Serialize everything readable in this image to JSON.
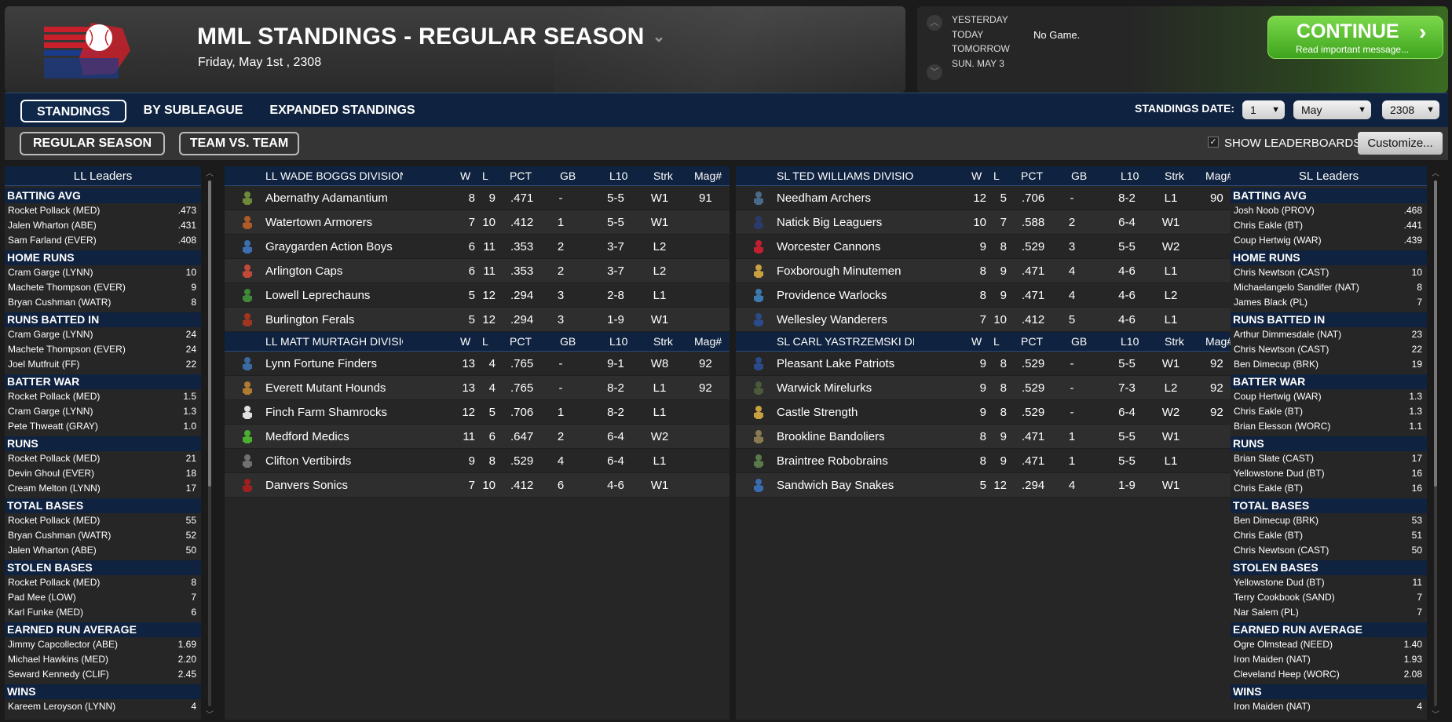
{
  "header": {
    "title": "MML STANDINGS - REGULAR SEASON",
    "date": "Friday, May 1st , 2308"
  },
  "games": {
    "days": [
      "YESTERDAY",
      "TODAY",
      "TOMORROW",
      "SUN. MAY 3"
    ],
    "today_status": "No Game."
  },
  "continue": {
    "label": "CONTINUE",
    "sub": "Read important message..."
  },
  "tabs": [
    "STANDINGS",
    "BY SUBLEAGUE",
    "EXPANDED STANDINGS"
  ],
  "standings_date": {
    "label": "STANDINGS DATE:",
    "day": "1",
    "month": "May",
    "year": "2308"
  },
  "subtabs": [
    "REGULAR SEASON",
    "TEAM VS. TEAM"
  ],
  "show_leaderboards": "SHOW LEADERBOARDS",
  "customize": "Customize...",
  "columns": [
    "W",
    "L",
    "PCT",
    "GB",
    "L10",
    "Strk",
    "Mag#"
  ],
  "divisions": [
    {
      "name": "LL WADE BOGGS DIVISION",
      "teams": [
        {
          "n": "Abernathy Adamantium",
          "w": "8",
          "l": "9",
          "pct": ".471",
          "gb": "-",
          "l10": "5-5",
          "strk": "W1",
          "mag": "91",
          "ic": "#6d8a3a"
        },
        {
          "n": "Watertown Armorers",
          "w": "7",
          "l": "10",
          "pct": ".412",
          "gb": "1",
          "l10": "5-5",
          "strk": "W1",
          "mag": "",
          "ic": "#b05a2a"
        },
        {
          "n": "Graygarden Action Boys",
          "w": "6",
          "l": "11",
          "pct": ".353",
          "gb": "2",
          "l10": "3-7",
          "strk": "L2",
          "mag": "",
          "ic": "#3b6fb0"
        },
        {
          "n": "Arlington Caps",
          "w": "6",
          "l": "11",
          "pct": ".353",
          "gb": "2",
          "l10": "3-7",
          "strk": "L2",
          "mag": "",
          "ic": "#c04a3a"
        },
        {
          "n": "Lowell Leprechauns",
          "w": "5",
          "l": "12",
          "pct": ".294",
          "gb": "3",
          "l10": "2-8",
          "strk": "L1",
          "mag": "",
          "ic": "#3e8a3a"
        },
        {
          "n": "Burlington Ferals",
          "w": "5",
          "l": "12",
          "pct": ".294",
          "gb": "3",
          "l10": "1-9",
          "strk": "W1",
          "mag": "",
          "ic": "#a03520"
        }
      ]
    },
    {
      "name": "SL TED WILLIAMS DIVISION",
      "teams": [
        {
          "n": "Needham Archers",
          "w": "12",
          "l": "5",
          "pct": ".706",
          "gb": "-",
          "l10": "8-2",
          "strk": "L1",
          "mag": "90",
          "ic": "#4a6a8a"
        },
        {
          "n": "Natick Big Leaguers",
          "w": "10",
          "l": "7",
          "pct": ".588",
          "gb": "2",
          "l10": "6-4",
          "strk": "W1",
          "mag": "",
          "ic": "#2a3a6a"
        },
        {
          "n": "Worcester Cannons",
          "w": "9",
          "l": "8",
          "pct": ".529",
          "gb": "3",
          "l10": "5-5",
          "strk": "W2",
          "mag": "",
          "ic": "#c02030"
        },
        {
          "n": "Foxborough Minutemen",
          "w": "8",
          "l": "9",
          "pct": ".471",
          "gb": "4",
          "l10": "4-6",
          "strk": "L1",
          "mag": "",
          "ic": "#c8a040"
        },
        {
          "n": "Providence Warlocks",
          "w": "8",
          "l": "9",
          "pct": ".471",
          "gb": "4",
          "l10": "4-6",
          "strk": "L2",
          "mag": "",
          "ic": "#3a7ab0"
        },
        {
          "n": "Wellesley Wanderers",
          "w": "7",
          "l": "10",
          "pct": ".412",
          "gb": "5",
          "l10": "4-6",
          "strk": "L1",
          "mag": "",
          "ic": "#2a4a8a"
        }
      ]
    },
    {
      "name": "LL MATT MURTAGH DIVISION",
      "teams": [
        {
          "n": "Lynn Fortune Finders",
          "w": "13",
          "l": "4",
          "pct": ".765",
          "gb": "-",
          "l10": "9-1",
          "strk": "W8",
          "mag": "92",
          "ic": "#3a6aa0"
        },
        {
          "n": "Everett Mutant Hounds",
          "w": "13",
          "l": "4",
          "pct": ".765",
          "gb": "-",
          "l10": "8-2",
          "strk": "L1",
          "mag": "92",
          "ic": "#b07a30"
        },
        {
          "n": "Finch Farm Shamrocks",
          "w": "12",
          "l": "5",
          "pct": ".706",
          "gb": "1",
          "l10": "8-2",
          "strk": "L1",
          "mag": "",
          "ic": "#e0e0e0"
        },
        {
          "n": "Medford Medics",
          "w": "11",
          "l": "6",
          "pct": ".647",
          "gb": "2",
          "l10": "6-4",
          "strk": "W2",
          "mag": "",
          "ic": "#4ab030"
        },
        {
          "n": "Clifton Vertibirds",
          "w": "9",
          "l": "8",
          "pct": ".529",
          "gb": "4",
          "l10": "6-4",
          "strk": "L1",
          "mag": "",
          "ic": "#707070"
        },
        {
          "n": "Danvers Sonics",
          "w": "7",
          "l": "10",
          "pct": ".412",
          "gb": "6",
          "l10": "4-6",
          "strk": "W1",
          "mag": "",
          "ic": "#a02020"
        }
      ]
    },
    {
      "name": "SL CARL YASTRZEMSKI DIVISION",
      "teams": [
        {
          "n": "Pleasant Lake Patriots",
          "w": "9",
          "l": "8",
          "pct": ".529",
          "gb": "-",
          "l10": "5-5",
          "strk": "W1",
          "mag": "92",
          "ic": "#2a4a8a"
        },
        {
          "n": "Warwick Mirelurks",
          "w": "9",
          "l": "8",
          "pct": ".529",
          "gb": "-",
          "l10": "7-3",
          "strk": "L2",
          "mag": "92",
          "ic": "#4a5a3a"
        },
        {
          "n": "Castle Strength",
          "w": "9",
          "l": "8",
          "pct": ".529",
          "gb": "-",
          "l10": "6-4",
          "strk": "W2",
          "mag": "92",
          "ic": "#c8a040"
        },
        {
          "n": "Brookline Bandoliers",
          "w": "8",
          "l": "9",
          "pct": ".471",
          "gb": "1",
          "l10": "5-5",
          "strk": "W1",
          "mag": "",
          "ic": "#8a7a50"
        },
        {
          "n": "Braintree Robobrains",
          "w": "8",
          "l": "9",
          "pct": ".471",
          "gb": "1",
          "l10": "5-5",
          "strk": "L1",
          "mag": "",
          "ic": "#5a7a4a"
        },
        {
          "n": "Sandwich Bay Snakes",
          "w": "5",
          "l": "12",
          "pct": ".294",
          "gb": "4",
          "l10": "1-9",
          "strk": "W1",
          "mag": "",
          "ic": "#3a6ab0"
        }
      ]
    }
  ],
  "ll_leaders": {
    "title": "LL Leaders",
    "cats": [
      {
        "t": "BATTING AVG",
        "r": [
          [
            "Rocket Pollack (MED)",
            ".473"
          ],
          [
            "Jalen Wharton (ABE)",
            ".431"
          ],
          [
            "Sam Farland (EVER)",
            ".408"
          ]
        ]
      },
      {
        "t": "HOME RUNS",
        "r": [
          [
            "Cram Garge (LYNN)",
            "10"
          ],
          [
            "Machete Thompson (EVER)",
            "9"
          ],
          [
            "Bryan Cushman (WATR)",
            "8"
          ]
        ]
      },
      {
        "t": "RUNS BATTED IN",
        "r": [
          [
            "Cram Garge (LYNN)",
            "24"
          ],
          [
            "Machete Thompson (EVER)",
            "24"
          ],
          [
            "Joel Mutfruit (FF)",
            "22"
          ]
        ]
      },
      {
        "t": "BATTER WAR",
        "r": [
          [
            "Rocket Pollack (MED)",
            "1.5"
          ],
          [
            "Cram Garge (LYNN)",
            "1.3"
          ],
          [
            "Pete Thweatt (GRAY)",
            "1.0"
          ]
        ]
      },
      {
        "t": "RUNS",
        "r": [
          [
            "Rocket Pollack (MED)",
            "21"
          ],
          [
            "Devin Ghoul (EVER)",
            "18"
          ],
          [
            "Cream Melton (LYNN)",
            "17"
          ]
        ]
      },
      {
        "t": "TOTAL BASES",
        "r": [
          [
            "Rocket Pollack (MED)",
            "55"
          ],
          [
            "Bryan Cushman (WATR)",
            "52"
          ],
          [
            "Jalen Wharton (ABE)",
            "50"
          ]
        ]
      },
      {
        "t": "STOLEN BASES",
        "r": [
          [
            "Rocket Pollack (MED)",
            "8"
          ],
          [
            "Pad Mee (LOW)",
            "7"
          ],
          [
            "Karl Funke (MED)",
            "6"
          ]
        ]
      },
      {
        "t": "EARNED RUN AVERAGE",
        "r": [
          [
            "Jimmy Capcollector (ABE)",
            "1.69"
          ],
          [
            "Michael Hawkins (MED)",
            "2.20"
          ],
          [
            "Seward Kennedy (CLIF)",
            "2.45"
          ]
        ]
      },
      {
        "t": "WINS",
        "r": [
          [
            "Kareem Leroyson (LYNN)",
            "4"
          ]
        ]
      }
    ]
  },
  "sl_leaders": {
    "title": "SL Leaders",
    "cats": [
      {
        "t": "BATTING AVG",
        "r": [
          [
            "Josh Noob (PROV)",
            ".468"
          ],
          [
            "Chris Eakle (BT)",
            ".441"
          ],
          [
            "Coup Hertwig (WAR)",
            ".439"
          ]
        ]
      },
      {
        "t": "HOME RUNS",
        "r": [
          [
            "Chris Newtson (CAST)",
            "10"
          ],
          [
            "Michaelangelo Sandifer (NAT)",
            "8"
          ],
          [
            "James Black (PL)",
            "7"
          ]
        ]
      },
      {
        "t": "RUNS BATTED IN",
        "r": [
          [
            "Arthur Dimmesdale (NAT)",
            "23"
          ],
          [
            "Chris Newtson (CAST)",
            "22"
          ],
          [
            "Ben Dimecup (BRK)",
            "19"
          ]
        ]
      },
      {
        "t": "BATTER WAR",
        "r": [
          [
            "Coup Hertwig (WAR)",
            "1.3"
          ],
          [
            "Chris Eakle (BT)",
            "1.3"
          ],
          [
            "Brian Elesson (WORC)",
            "1.1"
          ]
        ]
      },
      {
        "t": "RUNS",
        "r": [
          [
            "Brian Slate (CAST)",
            "17"
          ],
          [
            "Yellowstone Dud (BT)",
            "16"
          ],
          [
            "Chris Eakle (BT)",
            "16"
          ]
        ]
      },
      {
        "t": "TOTAL BASES",
        "r": [
          [
            "Ben Dimecup (BRK)",
            "53"
          ],
          [
            "Chris Eakle (BT)",
            "51"
          ],
          [
            "Chris Newtson (CAST)",
            "50"
          ]
        ]
      },
      {
        "t": "STOLEN BASES",
        "r": [
          [
            "Yellowstone Dud (BT)",
            "11"
          ],
          [
            "Terry Cookbook (SAND)",
            "7"
          ],
          [
            "Nar Salem (PL)",
            "7"
          ]
        ]
      },
      {
        "t": "EARNED RUN AVERAGE",
        "r": [
          [
            "Ogre Olmstead (NEED)",
            "1.40"
          ],
          [
            "Iron Maiden (NAT)",
            "1.93"
          ],
          [
            "Cleveland Heep (WORC)",
            "2.08"
          ]
        ]
      },
      {
        "t": "WINS",
        "r": [
          [
            "Iron Maiden (NAT)",
            "4"
          ]
        ]
      }
    ]
  },
  "colors": {
    "nav": "#0f223f",
    "accent_green": "#4cb82a"
  }
}
